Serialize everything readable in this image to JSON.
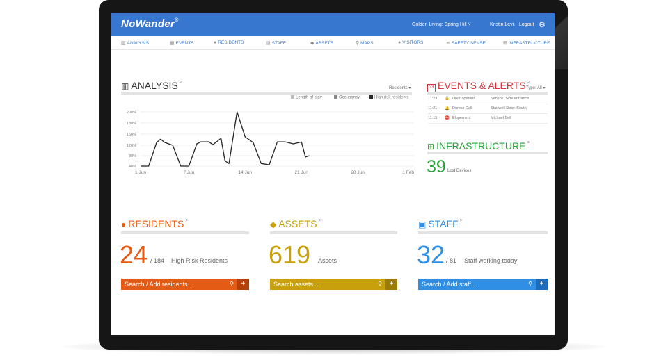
{
  "header": {
    "brand": "NoWander",
    "brand_mark": "®",
    "facility": "Golden Living: Spring Hill",
    "facility_chevron": "˅",
    "user": "Kristin Levi.",
    "logout": "Logout",
    "gear_icon": "⚙"
  },
  "nav": [
    {
      "icon": "▥",
      "label": "ANALYSIS"
    },
    {
      "icon": "▦",
      "label": "EVENTS"
    },
    {
      "icon": "●",
      "label": "RESIDENTS"
    },
    {
      "icon": "▤",
      "label": "STAFF"
    },
    {
      "icon": "◆",
      "label": "ASSETS"
    },
    {
      "icon": "⚲",
      "label": "MAPS"
    },
    {
      "icon": "●",
      "label": "VISITORS"
    },
    {
      "icon": "≋",
      "label": "SAFETY SENSE"
    },
    {
      "icon": "⊞",
      "label": "INFRASTRUCTURE"
    }
  ],
  "analysis": {
    "title": "ANALYSIS",
    "chevron": ">",
    "filter": "Residents",
    "filter_chevron": "▾",
    "legend": [
      {
        "name": "Length of stay",
        "color": "#bbbbbb"
      },
      {
        "name": "Occupancy",
        "color": "#8a8a8a"
      },
      {
        "name": "High risk residents",
        "color": "#2a2a2a"
      }
    ]
  },
  "chart_data": {
    "type": "line",
    "x_ticks": [
      "1 Jun",
      "7 Jun",
      "14 Jun",
      "21 Jun",
      "28 Jun",
      "1 Feb"
    ],
    "y_ticks": [
      "200%",
      "180%",
      "160%",
      "120%",
      "80%",
      "40%"
    ],
    "series": [
      {
        "name": "High risk residents",
        "color": "#222222",
        "x_days": [
          1,
          2,
          3,
          3.5,
          4,
          5,
          6,
          7,
          8,
          8.5,
          9.5,
          10,
          11,
          11.5,
          12,
          13,
          14,
          15,
          16,
          17,
          18,
          19,
          20,
          21,
          21.5,
          22
        ],
        "values": [
          40,
          40,
          130,
          142,
          130,
          120,
          40,
          40,
          125,
          132,
          132,
          122,
          145,
          60,
          50,
          200,
          150,
          130,
          50,
          45,
          132,
          132,
          125,
          132,
          75,
          80
        ]
      }
    ]
  },
  "events": {
    "title": "EVENTS & ALERTS",
    "chevron": ">",
    "calendar_day": "23",
    "type_label": "Type:",
    "type_value": "All",
    "type_chevron": "▾",
    "rows": [
      {
        "time": "11:23",
        "icon": "🔓",
        "color": "#bbbbbb",
        "event": "Door opened",
        "detail": "Service: Side entrance"
      },
      {
        "time": "11:21",
        "icon": "🔔",
        "color": "#d9343b",
        "event": "Duress Call",
        "detail": "Stairwell Door: South"
      },
      {
        "time": "11:15",
        "icon": "⛔",
        "color": "#d9343b",
        "event": "Elopement",
        "detail": "Michael Bell"
      }
    ]
  },
  "infrastructure": {
    "title": "INFRASTRUCTURE",
    "chevron": ">",
    "count": "39",
    "label": "Lost Devices"
  },
  "residents": {
    "title": "RESIDENTS",
    "chevron": ">",
    "count": "24",
    "total": "/ 184",
    "label": "High Risk Residents",
    "search": "Search / Add residents...",
    "color": "#e45b16",
    "dark": "#b33f0a"
  },
  "assets": {
    "title": "ASSETS",
    "chevron": ">",
    "count": "619",
    "label": "Assets",
    "search": "Search  assets...",
    "color": "#c7a00b",
    "dark": "#9a7c06"
  },
  "staff": {
    "title": "STAFF",
    "chevron": ">",
    "count": "32",
    "total": "/ 81",
    "label": "Staff working today",
    "search": "Search / Add staff...",
    "color": "#2e8fe4",
    "dark": "#1c6cbd"
  },
  "icons": {
    "search": "⚲",
    "plus": "+",
    "analysis": "▥",
    "infra": "⊞",
    "residents": "●",
    "assets": "◆",
    "staff": "▣"
  }
}
